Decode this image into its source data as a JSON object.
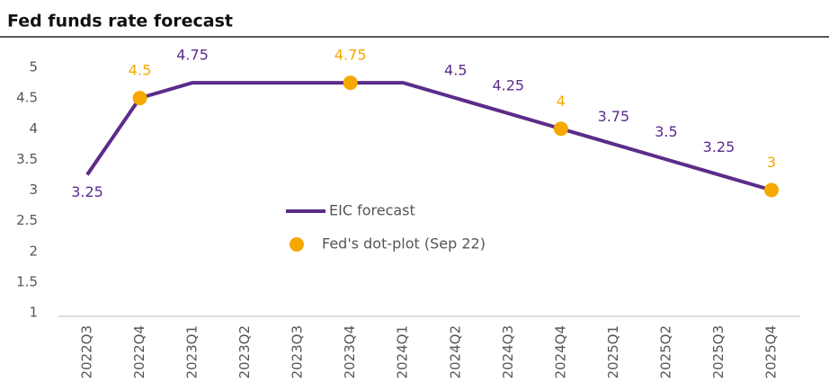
{
  "chart_data": {
    "type": "line",
    "title": "Fed funds rate forecast",
    "categories": [
      "2022Q3",
      "2022Q4",
      "2023Q1",
      "2023Q2",
      "2023Q3",
      "2023Q4",
      "2024Q1",
      "2024Q2",
      "2024Q3",
      "2024Q4",
      "2025Q1",
      "2025Q2",
      "2025Q3",
      "2025Q4"
    ],
    "series": [
      {
        "name": "EIC forecast",
        "color": "#5b2c8a",
        "kind": "line",
        "values": [
          3.25,
          4.5,
          4.75,
          4.75,
          4.75,
          4.75,
          4.75,
          4.5,
          4.25,
          4,
          3.75,
          3.5,
          3.25,
          3
        ],
        "value_labels": [
          "3.25",
          null,
          "4.75",
          null,
          null,
          null,
          null,
          "4.5",
          "4.25",
          null,
          "3.75",
          "3.5",
          "3.25",
          null
        ]
      },
      {
        "name": "Fed's dot-plot (Sep 22)",
        "color": "#f5a800",
        "kind": "dots",
        "values": [
          null,
          4.5,
          null,
          null,
          null,
          4.75,
          null,
          null,
          null,
          4,
          null,
          null,
          null,
          3
        ],
        "value_labels": [
          null,
          "4.5",
          null,
          null,
          null,
          "4.75",
          null,
          null,
          null,
          "4",
          null,
          null,
          null,
          "3"
        ]
      }
    ],
    "ylim": [
      1,
      5
    ],
    "yticks": [
      1,
      1.5,
      2,
      2.5,
      3,
      3.5,
      4,
      4.5,
      5
    ],
    "grid": false
  }
}
